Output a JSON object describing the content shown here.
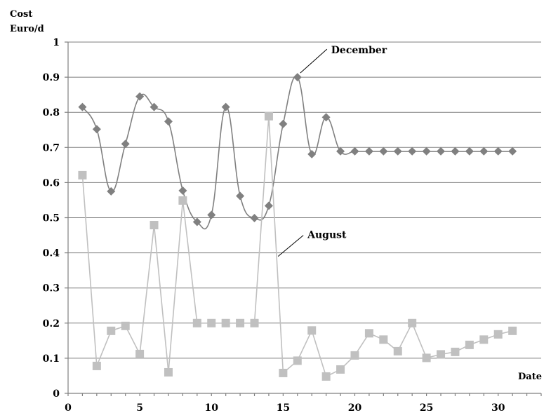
{
  "chart_data": {
    "type": "line",
    "ylabel_line1": "Cost",
    "ylabel_line2": "Euro/d",
    "xlabel": "Date",
    "xlim": [
      0,
      33
    ],
    "ylim": [
      0,
      1
    ],
    "x_ticks": [
      0,
      5,
      10,
      15,
      20,
      25,
      30
    ],
    "y_ticks": [
      "0",
      "0.1",
      "0.2",
      "0.3",
      "0.4",
      "0.5",
      "0.6",
      "0.7",
      "0.8",
      "0.9",
      "1"
    ],
    "grid": true,
    "legend": "none",
    "x": [
      1,
      2,
      3,
      4,
      5,
      6,
      7,
      8,
      9,
      10,
      11,
      12,
      13,
      14,
      15,
      16,
      17,
      18,
      19,
      20,
      21,
      22,
      23,
      24,
      25,
      26,
      27,
      28,
      29,
      30,
      31
    ],
    "series": [
      {
        "name": "December",
        "color": "#808080",
        "marker": "diamond",
        "smooth": true,
        "values": [
          0.815,
          0.752,
          0.575,
          0.71,
          0.845,
          0.815,
          0.774,
          0.577,
          0.488,
          0.508,
          0.815,
          0.562,
          0.499,
          0.534,
          0.767,
          0.9,
          0.681,
          0.786,
          0.689,
          0.689,
          0.689,
          0.689,
          0.689,
          0.689,
          0.689,
          0.689,
          0.689,
          0.689,
          0.689,
          0.689,
          0.689
        ]
      },
      {
        "name": "August",
        "color": "#c0c0c0",
        "marker": "square",
        "smooth": false,
        "values": [
          0.621,
          0.078,
          0.178,
          0.192,
          0.112,
          0.479,
          0.06,
          0.549,
          0.2,
          0.2,
          0.2,
          0.2,
          0.2,
          0.789,
          0.058,
          0.093,
          0.179,
          0.048,
          0.068,
          0.108,
          0.171,
          0.153,
          0.12,
          0.2,
          0.101,
          0.111,
          0.118,
          0.138,
          0.153,
          0.168,
          0.178
        ]
      }
    ],
    "annotations": [
      {
        "text": "December",
        "series": "December",
        "x": 16
      },
      {
        "text": "August",
        "series": "August",
        "x": 14.5
      }
    ]
  }
}
